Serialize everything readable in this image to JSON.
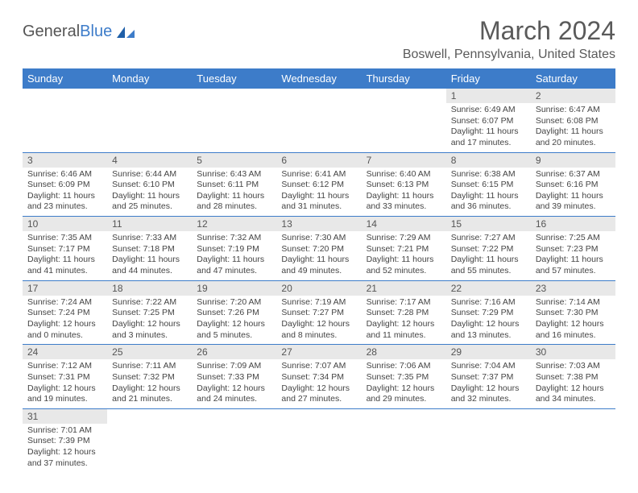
{
  "brand": {
    "part1": "General",
    "part2": "Blue",
    "logo_color": "#1f5fa8"
  },
  "title": "March 2024",
  "location": "Boswell, Pennsylvania, United States",
  "colors": {
    "header_bg": "#3d7cc9",
    "header_text": "#ffffff",
    "daynum_bg": "#e8e8e8",
    "cell_border": "#3d7cc9",
    "body_text": "#444444"
  },
  "weekdays": [
    "Sunday",
    "Monday",
    "Tuesday",
    "Wednesday",
    "Thursday",
    "Friday",
    "Saturday"
  ],
  "weeks": [
    [
      null,
      null,
      null,
      null,
      null,
      {
        "d": "1",
        "sunrise": "Sunrise: 6:49 AM",
        "sunset": "Sunset: 6:07 PM",
        "day1": "Daylight: 11 hours",
        "day2": "and 17 minutes."
      },
      {
        "d": "2",
        "sunrise": "Sunrise: 6:47 AM",
        "sunset": "Sunset: 6:08 PM",
        "day1": "Daylight: 11 hours",
        "day2": "and 20 minutes."
      }
    ],
    [
      {
        "d": "3",
        "sunrise": "Sunrise: 6:46 AM",
        "sunset": "Sunset: 6:09 PM",
        "day1": "Daylight: 11 hours",
        "day2": "and 23 minutes."
      },
      {
        "d": "4",
        "sunrise": "Sunrise: 6:44 AM",
        "sunset": "Sunset: 6:10 PM",
        "day1": "Daylight: 11 hours",
        "day2": "and 25 minutes."
      },
      {
        "d": "5",
        "sunrise": "Sunrise: 6:43 AM",
        "sunset": "Sunset: 6:11 PM",
        "day1": "Daylight: 11 hours",
        "day2": "and 28 minutes."
      },
      {
        "d": "6",
        "sunrise": "Sunrise: 6:41 AM",
        "sunset": "Sunset: 6:12 PM",
        "day1": "Daylight: 11 hours",
        "day2": "and 31 minutes."
      },
      {
        "d": "7",
        "sunrise": "Sunrise: 6:40 AM",
        "sunset": "Sunset: 6:13 PM",
        "day1": "Daylight: 11 hours",
        "day2": "and 33 minutes."
      },
      {
        "d": "8",
        "sunrise": "Sunrise: 6:38 AM",
        "sunset": "Sunset: 6:15 PM",
        "day1": "Daylight: 11 hours",
        "day2": "and 36 minutes."
      },
      {
        "d": "9",
        "sunrise": "Sunrise: 6:37 AM",
        "sunset": "Sunset: 6:16 PM",
        "day1": "Daylight: 11 hours",
        "day2": "and 39 minutes."
      }
    ],
    [
      {
        "d": "10",
        "sunrise": "Sunrise: 7:35 AM",
        "sunset": "Sunset: 7:17 PM",
        "day1": "Daylight: 11 hours",
        "day2": "and 41 minutes."
      },
      {
        "d": "11",
        "sunrise": "Sunrise: 7:33 AM",
        "sunset": "Sunset: 7:18 PM",
        "day1": "Daylight: 11 hours",
        "day2": "and 44 minutes."
      },
      {
        "d": "12",
        "sunrise": "Sunrise: 7:32 AM",
        "sunset": "Sunset: 7:19 PM",
        "day1": "Daylight: 11 hours",
        "day2": "and 47 minutes."
      },
      {
        "d": "13",
        "sunrise": "Sunrise: 7:30 AM",
        "sunset": "Sunset: 7:20 PM",
        "day1": "Daylight: 11 hours",
        "day2": "and 49 minutes."
      },
      {
        "d": "14",
        "sunrise": "Sunrise: 7:29 AM",
        "sunset": "Sunset: 7:21 PM",
        "day1": "Daylight: 11 hours",
        "day2": "and 52 minutes."
      },
      {
        "d": "15",
        "sunrise": "Sunrise: 7:27 AM",
        "sunset": "Sunset: 7:22 PM",
        "day1": "Daylight: 11 hours",
        "day2": "and 55 minutes."
      },
      {
        "d": "16",
        "sunrise": "Sunrise: 7:25 AM",
        "sunset": "Sunset: 7:23 PM",
        "day1": "Daylight: 11 hours",
        "day2": "and 57 minutes."
      }
    ],
    [
      {
        "d": "17",
        "sunrise": "Sunrise: 7:24 AM",
        "sunset": "Sunset: 7:24 PM",
        "day1": "Daylight: 12 hours",
        "day2": "and 0 minutes."
      },
      {
        "d": "18",
        "sunrise": "Sunrise: 7:22 AM",
        "sunset": "Sunset: 7:25 PM",
        "day1": "Daylight: 12 hours",
        "day2": "and 3 minutes."
      },
      {
        "d": "19",
        "sunrise": "Sunrise: 7:20 AM",
        "sunset": "Sunset: 7:26 PM",
        "day1": "Daylight: 12 hours",
        "day2": "and 5 minutes."
      },
      {
        "d": "20",
        "sunrise": "Sunrise: 7:19 AM",
        "sunset": "Sunset: 7:27 PM",
        "day1": "Daylight: 12 hours",
        "day2": "and 8 minutes."
      },
      {
        "d": "21",
        "sunrise": "Sunrise: 7:17 AM",
        "sunset": "Sunset: 7:28 PM",
        "day1": "Daylight: 12 hours",
        "day2": "and 11 minutes."
      },
      {
        "d": "22",
        "sunrise": "Sunrise: 7:16 AM",
        "sunset": "Sunset: 7:29 PM",
        "day1": "Daylight: 12 hours",
        "day2": "and 13 minutes."
      },
      {
        "d": "23",
        "sunrise": "Sunrise: 7:14 AM",
        "sunset": "Sunset: 7:30 PM",
        "day1": "Daylight: 12 hours",
        "day2": "and 16 minutes."
      }
    ],
    [
      {
        "d": "24",
        "sunrise": "Sunrise: 7:12 AM",
        "sunset": "Sunset: 7:31 PM",
        "day1": "Daylight: 12 hours",
        "day2": "and 19 minutes."
      },
      {
        "d": "25",
        "sunrise": "Sunrise: 7:11 AM",
        "sunset": "Sunset: 7:32 PM",
        "day1": "Daylight: 12 hours",
        "day2": "and 21 minutes."
      },
      {
        "d": "26",
        "sunrise": "Sunrise: 7:09 AM",
        "sunset": "Sunset: 7:33 PM",
        "day1": "Daylight: 12 hours",
        "day2": "and 24 minutes."
      },
      {
        "d": "27",
        "sunrise": "Sunrise: 7:07 AM",
        "sunset": "Sunset: 7:34 PM",
        "day1": "Daylight: 12 hours",
        "day2": "and 27 minutes."
      },
      {
        "d": "28",
        "sunrise": "Sunrise: 7:06 AM",
        "sunset": "Sunset: 7:35 PM",
        "day1": "Daylight: 12 hours",
        "day2": "and 29 minutes."
      },
      {
        "d": "29",
        "sunrise": "Sunrise: 7:04 AM",
        "sunset": "Sunset: 7:37 PM",
        "day1": "Daylight: 12 hours",
        "day2": "and 32 minutes."
      },
      {
        "d": "30",
        "sunrise": "Sunrise: 7:03 AM",
        "sunset": "Sunset: 7:38 PM",
        "day1": "Daylight: 12 hours",
        "day2": "and 34 minutes."
      }
    ],
    [
      {
        "d": "31",
        "sunrise": "Sunrise: 7:01 AM",
        "sunset": "Sunset: 7:39 PM",
        "day1": "Daylight: 12 hours",
        "day2": "and 37 minutes."
      },
      null,
      null,
      null,
      null,
      null,
      null
    ]
  ]
}
